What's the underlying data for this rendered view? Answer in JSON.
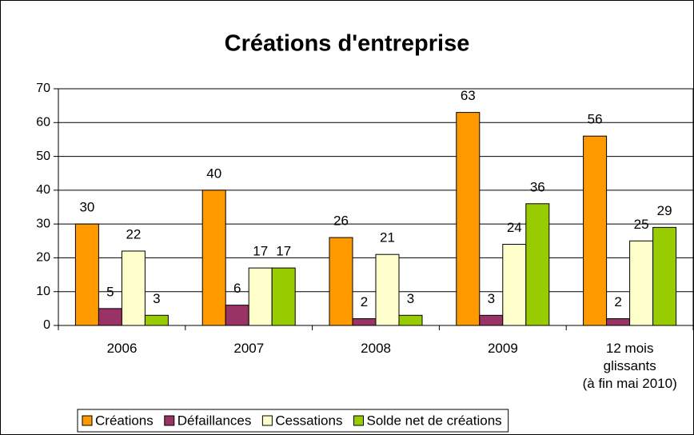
{
  "chart_data": {
    "type": "bar",
    "title": "Créations d'entreprise",
    "categories": [
      "2006",
      "2007",
      "2008",
      "2009",
      "12 mois\nglissants\n(à fin mai 2010)"
    ],
    "series": [
      {
        "name": "Créations",
        "color": "#ff9900",
        "values": [
          30,
          40,
          26,
          63,
          56
        ]
      },
      {
        "name": "Défaillances",
        "color": "#993366",
        "values": [
          5,
          6,
          2,
          3,
          2
        ]
      },
      {
        "name": "Cessations",
        "color": "#ffffcc",
        "values": [
          22,
          17,
          21,
          24,
          25
        ]
      },
      {
        "name": "Solde net de créations",
        "color": "#99cc00",
        "values": [
          3,
          17,
          3,
          36,
          29
        ]
      }
    ],
    "ylim": [
      0,
      70
    ],
    "yticks": [
      0,
      10,
      20,
      30,
      40,
      50,
      60,
      70
    ],
    "grid": true,
    "legend": "bottom"
  }
}
